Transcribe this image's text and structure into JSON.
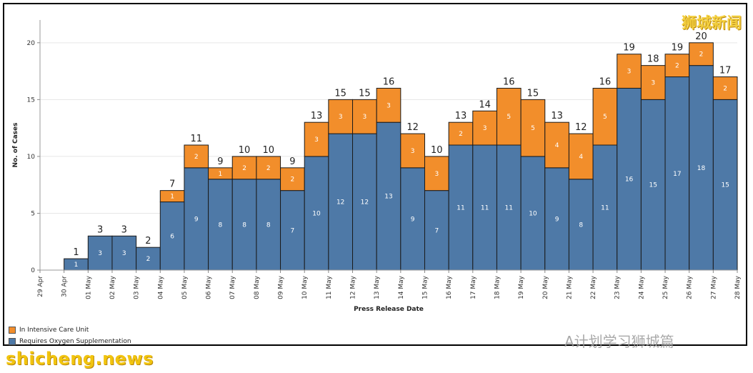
{
  "chart_data": {
    "type": "bar",
    "stacked": true,
    "title": "",
    "xlabel": "Press Release Date",
    "ylabel": "No. of Cases",
    "ylim": [
      0,
      22
    ],
    "yticks": [
      0,
      5,
      10,
      15,
      20
    ],
    "grid": true,
    "legend_position": "bottom-left",
    "categories": [
      "30 Apr",
      "01 May",
      "02 May",
      "03 May",
      "04 May",
      "05 May",
      "06 May",
      "07 May",
      "08 May",
      "09 May",
      "10 May",
      "11 May",
      "12 May",
      "13 May",
      "14 May",
      "15 May",
      "16 May",
      "17 May",
      "18 May",
      "19 May",
      "20 May",
      "21 May",
      "22 May",
      "23 May",
      "24 May",
      "25 May",
      "26 May",
      "27 May"
    ],
    "tick_labels": [
      "29 Apr",
      "30 Apr",
      "01 May",
      "02 May",
      "03 May",
      "04 May",
      "05 May",
      "06 May",
      "07 May",
      "08 May",
      "09 May",
      "10 May",
      "11 May",
      "12 May",
      "13 May",
      "14 May",
      "15 May",
      "16 May",
      "17 May",
      "18 May",
      "19 May",
      "20 May",
      "21 May",
      "22 May",
      "23 May",
      "24 May",
      "25 May",
      "26 May",
      "27 May",
      "28 May"
    ],
    "series": [
      {
        "name": "Requires Oxygen Supplementation",
        "color": "#4e79a7",
        "values": [
          1,
          3,
          3,
          2,
          6,
          9,
          8,
          8,
          8,
          7,
          10,
          12,
          12,
          13,
          9,
          7,
          11,
          11,
          11,
          10,
          9,
          8,
          11,
          16,
          15,
          17,
          18,
          15
        ]
      },
      {
        "name": "In Intensive Care Unit",
        "color": "#f28e2b",
        "values": [
          0,
          0,
          0,
          0,
          1,
          2,
          1,
          2,
          2,
          2,
          3,
          3,
          3,
          3,
          3,
          3,
          2,
          3,
          5,
          5,
          4,
          4,
          5,
          3,
          3,
          2,
          2,
          2
        ]
      }
    ],
    "totals": [
      1,
      3,
      3,
      2,
      7,
      11,
      9,
      10,
      10,
      9,
      13,
      15,
      15,
      16,
      12,
      10,
      13,
      14,
      16,
      15,
      13,
      12,
      16,
      19,
      18,
      19,
      20,
      17
    ]
  },
  "legend": {
    "items": [
      {
        "label": "In Intensive Care Unit",
        "color": "#f28e2b"
      },
      {
        "label": "Requires Oxygen Supplementation",
        "color": "#4e79a7"
      }
    ]
  },
  "watermarks": {
    "top": "狮城新闻",
    "middle": "A计划学习狮城篇",
    "bottom": "shicheng.news"
  }
}
